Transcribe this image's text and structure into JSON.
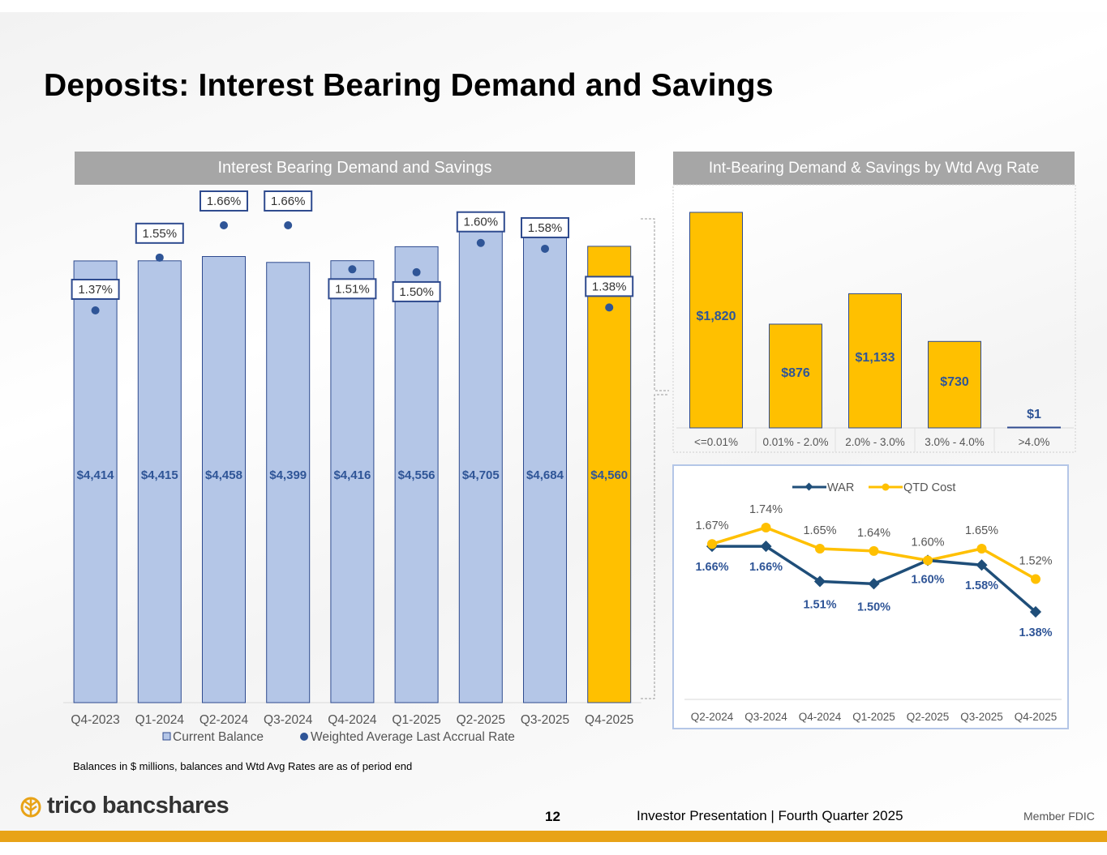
{
  "title": "Deposits: Interest Bearing Demand and Savings",
  "footnote": "Balances in $ millions, balances and Wtd Avg Rates are as of period end",
  "footer": {
    "brand": "trico bancshares",
    "page": "12",
    "presentation": "Investor Presentation  |  Fourth Quarter 2025",
    "member": "Member FDIC"
  },
  "colors": {
    "light_bar": "#b4c6e7",
    "bar_border": "#2f4b8f",
    "gold": "#ffc000",
    "dot": "#2f5597",
    "war_line": "#1f4e79",
    "qtd_line": "#ffc000"
  },
  "chart_data": [
    {
      "type": "bar",
      "title": "Interest Bearing Demand and Savings",
      "categories": [
        "Q4-2023",
        "Q1-2024",
        "Q2-2024",
        "Q3-2024",
        "Q4-2024",
        "Q1-2025",
        "Q2-2025",
        "Q3-2025",
        "Q4-2025"
      ],
      "series": [
        {
          "name": "Current Balance",
          "values": [
            4414,
            4415,
            4458,
            4399,
            4416,
            4556,
            4705,
            4684,
            4560
          ],
          "labels": [
            "$4,414",
            "$4,415",
            "$4,458",
            "$4,399",
            "$4,416",
            "$4,556",
            "$4,705",
            "$4,684",
            "$4,560"
          ]
        },
        {
          "name": "Weighted Average Last Accrual Rate",
          "values": [
            1.37,
            1.55,
            1.66,
            1.66,
            1.51,
            1.5,
            1.6,
            1.58,
            1.38
          ],
          "labels": [
            "1.37%",
            "1.55%",
            "1.66%",
            "1.66%",
            "1.51%",
            "1.50%",
            "1.60%",
            "1.58%",
            "1.38%"
          ]
        }
      ],
      "highlight_index": 8,
      "legend": [
        "Current Balance",
        "Weighted Average Last Accrual Rate"
      ]
    },
    {
      "type": "bar",
      "title": "Int-Bearing Demand & Savings by Wtd Avg Rate",
      "categories": [
        "<=0.01%",
        "0.01% - 2.0%",
        "2.0% - 3.0%",
        "3.0% - 4.0%",
        ">4.0%"
      ],
      "values": [
        1820,
        876,
        1133,
        730,
        1
      ],
      "labels": [
        "$1,820",
        "$876",
        "$1,133",
        "$730",
        "$1"
      ]
    },
    {
      "type": "line",
      "categories": [
        "Q2-2024",
        "Q3-2024",
        "Q4-2024",
        "Q1-2025",
        "Q2-2025",
        "Q3-2025",
        "Q4-2025"
      ],
      "series": [
        {
          "name": "WAR",
          "values": [
            1.66,
            1.66,
            1.51,
            1.5,
            1.6,
            1.58,
            1.38
          ],
          "labels": [
            "1.66%",
            "1.66%",
            "1.51%",
            "1.50%",
            "1.60%",
            "1.58%",
            "1.38%"
          ]
        },
        {
          "name": "QTD Cost",
          "values": [
            1.67,
            1.74,
            1.65,
            1.64,
            1.6,
            1.65,
            1.52
          ],
          "labels": [
            "1.67%",
            "1.74%",
            "1.65%",
            "1.64%",
            "1.60%",
            "1.65%",
            "1.52%"
          ]
        }
      ],
      "legend": [
        "WAR",
        "QTD Cost"
      ],
      "legend_position": "top"
    }
  ]
}
